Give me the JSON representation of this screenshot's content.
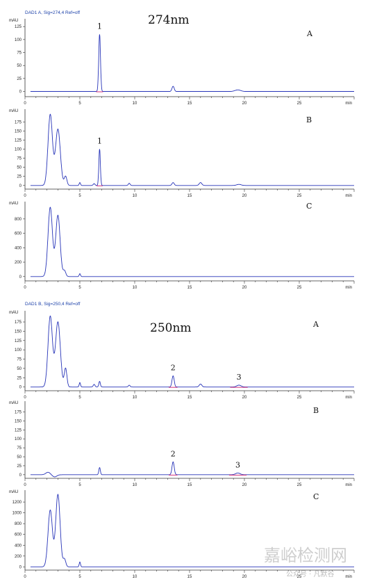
{
  "headers": {
    "upper": "DAD1 A, Sig=274,4 Ref=off",
    "lower": "DAD1 B, Sig=250,4 Ref=off"
  },
  "wavelength_labels": [
    "274nm",
    "250nm"
  ],
  "y_unit": "mAU",
  "x_unit": "min",
  "watermark": {
    "main": "嘉峪检测网",
    "sub": "公众号 · 凡默谷"
  },
  "colors": {
    "trace": "#2633b8",
    "baseline": "#d0307a",
    "axis": "#333333",
    "header": "#1a3fa8"
  },
  "chart_data": [
    {
      "type": "line",
      "panel": "A",
      "wavelength": "274nm",
      "xlim": [
        0,
        30
      ],
      "ylim": [
        -10,
        140
      ],
      "xticks": [
        0,
        5,
        10,
        15,
        20,
        25
      ],
      "yticks": [
        0,
        25,
        50,
        75,
        100,
        125
      ],
      "peaks": [
        {
          "x": 6.8,
          "y": 110,
          "w": 0.08,
          "label": "1"
        },
        {
          "x": 13.5,
          "y": 10,
          "w": 0.1
        },
        {
          "x": 19.4,
          "y": 3,
          "w": 0.25
        }
      ]
    },
    {
      "type": "line",
      "panel": "B",
      "wavelength": "274nm",
      "xlim": [
        0,
        30
      ],
      "ylim": [
        -10,
        210
      ],
      "xticks": [
        0,
        5,
        10,
        15,
        20,
        25
      ],
      "yticks": [
        0,
        25,
        50,
        75,
        100,
        125,
        150,
        175
      ],
      "peaks": [
        {
          "x": 2.3,
          "y": 195,
          "w": 0.2
        },
        {
          "x": 3.0,
          "y": 155,
          "w": 0.22
        },
        {
          "x": 3.7,
          "y": 25,
          "w": 0.12
        },
        {
          "x": 5.0,
          "y": 8,
          "w": 0.06
        },
        {
          "x": 6.3,
          "y": 5,
          "w": 0.08
        },
        {
          "x": 6.8,
          "y": 100,
          "w": 0.07,
          "label": "1"
        },
        {
          "x": 9.5,
          "y": 6,
          "w": 0.08
        },
        {
          "x": 13.5,
          "y": 8,
          "w": 0.1
        },
        {
          "x": 16.0,
          "y": 8,
          "w": 0.12
        },
        {
          "x": 19.5,
          "y": 3,
          "w": 0.2
        }
      ]
    },
    {
      "type": "line",
      "panel": "C",
      "wavelength": "274nm",
      "xlim": [
        0,
        30
      ],
      "ylim": [
        -60,
        1040
      ],
      "xticks": [
        0,
        5,
        10,
        15,
        20,
        25
      ],
      "yticks": [
        0,
        200,
        400,
        600,
        800
      ],
      "peaks": [
        {
          "x": 2.3,
          "y": 960,
          "w": 0.2
        },
        {
          "x": 3.0,
          "y": 850,
          "w": 0.2
        },
        {
          "x": 3.6,
          "y": 80,
          "w": 0.12
        },
        {
          "x": 5.0,
          "y": 40,
          "w": 0.06
        }
      ]
    },
    {
      "type": "line",
      "panel": "A",
      "wavelength": "250nm",
      "xlim": [
        0,
        30
      ],
      "ylim": [
        -10,
        205
      ],
      "xticks": [
        0,
        5,
        10,
        15,
        20,
        25
      ],
      "yticks": [
        0,
        25,
        50,
        75,
        100,
        125,
        150,
        175
      ],
      "peaks": [
        {
          "x": 2.3,
          "y": 190,
          "w": 0.2
        },
        {
          "x": 3.0,
          "y": 175,
          "w": 0.22
        },
        {
          "x": 3.7,
          "y": 50,
          "w": 0.12
        },
        {
          "x": 5.0,
          "y": 12,
          "w": 0.06
        },
        {
          "x": 6.3,
          "y": 7,
          "w": 0.08
        },
        {
          "x": 6.8,
          "y": 15,
          "w": 0.07
        },
        {
          "x": 9.5,
          "y": 5,
          "w": 0.08
        },
        {
          "x": 13.5,
          "y": 30,
          "w": 0.1,
          "label": "2"
        },
        {
          "x": 16.0,
          "y": 8,
          "w": 0.12
        },
        {
          "x": 19.5,
          "y": 5,
          "w": 0.2,
          "label": "3"
        }
      ]
    },
    {
      "type": "line",
      "panel": "B",
      "wavelength": "250nm",
      "xlim": [
        0,
        30
      ],
      "ylim": [
        -10,
        205
      ],
      "xticks": [
        0,
        5,
        10,
        15,
        20,
        25
      ],
      "yticks": [
        0,
        25,
        50,
        75,
        100,
        125,
        150,
        175
      ],
      "peaks": [
        {
          "x": 2.1,
          "y": 7,
          "w": 0.2
        },
        {
          "x": 2.7,
          "y": -6,
          "w": 0.2
        },
        {
          "x": 6.8,
          "y": 20,
          "w": 0.07
        },
        {
          "x": 13.5,
          "y": 36,
          "w": 0.1,
          "label": "2"
        },
        {
          "x": 19.4,
          "y": 5,
          "w": 0.2,
          "label": "3"
        }
      ]
    },
    {
      "type": "line",
      "panel": "C",
      "wavelength": "250nm",
      "xlim": [
        0,
        30
      ],
      "ylim": [
        -60,
        1420
      ],
      "xticks": [
        0,
        5,
        10,
        15,
        20,
        25
      ],
      "yticks": [
        0,
        200,
        400,
        600,
        800,
        1000,
        1200
      ],
      "peaks": [
        {
          "x": 2.3,
          "y": 1050,
          "w": 0.2
        },
        {
          "x": 3.0,
          "y": 1340,
          "w": 0.2
        },
        {
          "x": 3.6,
          "y": 140,
          "w": 0.12
        },
        {
          "x": 5.0,
          "y": 90,
          "w": 0.06
        }
      ]
    }
  ]
}
